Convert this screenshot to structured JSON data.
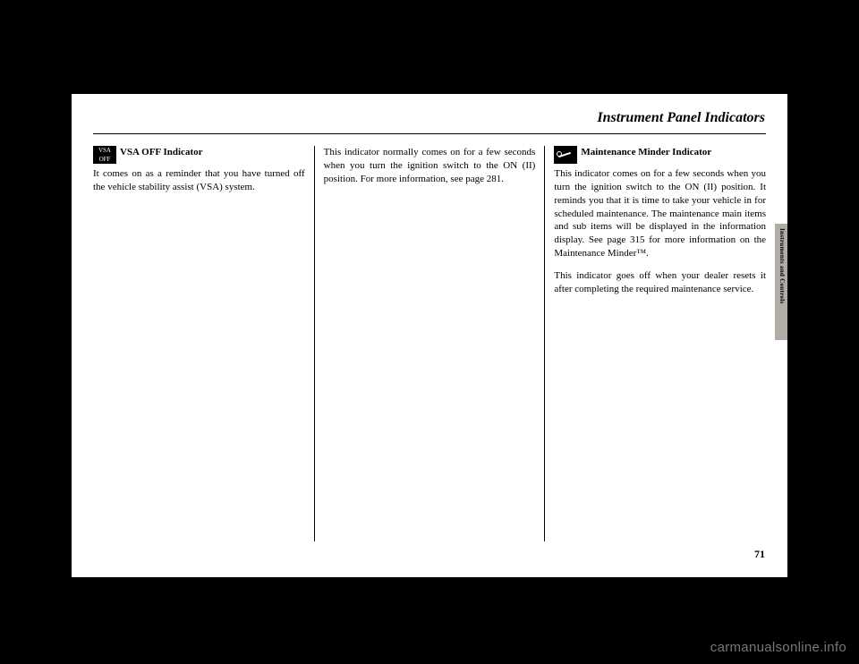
{
  "page": {
    "title": "Instrument Panel Indicators",
    "number": "71",
    "sideTab": "Instruments and Controls"
  },
  "col1": {
    "iconLabel": "VSA\nOFF",
    "heading": "VSA OFF Indicator",
    "body": "It comes on as a reminder that you have turned off the vehicle stability assist (VSA) system."
  },
  "col2": {
    "body": "This indicator normally comes on for a few seconds when you turn the ignition switch to the ON (II) position. For more information, see page 281."
  },
  "col3": {
    "heading": "Maintenance Minder Indicator",
    "body1": "This indicator comes on for a few seconds when you turn the ignition switch to the ON (II) position. It reminds you that it is time to take your vehicle in for scheduled maintenance. The maintenance main items and sub items will be displayed in the information display. See page 315 for more information on the Maintenance Minder™.",
    "body2": "This indicator goes off when your dealer resets it after completing the required maintenance service."
  },
  "watermark": "carmanualsonline.info"
}
